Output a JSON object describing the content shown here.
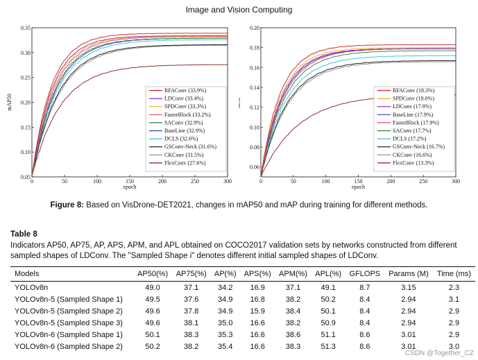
{
  "header": {
    "journal": "Image and Vision Computing"
  },
  "chart_data": [
    {
      "type": "line",
      "id": "left",
      "xlabel": "epoch",
      "ylabel": "mAP50",
      "xlim": [
        0,
        300
      ],
      "ylim": [
        0.05,
        0.35
      ],
      "xticks": [
        0,
        50,
        100,
        150,
        200,
        250,
        300
      ],
      "yticks": [
        0.05,
        0.1,
        0.15,
        0.2,
        0.25,
        0.3,
        0.35
      ],
      "ytick_labels": [
        "0.05",
        "0.10",
        "0.15",
        "0.20",
        "0.25",
        "0.30",
        "0.35"
      ],
      "legend_position": "lower-right",
      "series": [
        {
          "name": "RFAConv (33.9%)",
          "color": "#cc1f1f",
          "final": 0.339
        },
        {
          "name": "LDConv (33.4%)",
          "color": "#8e24aa",
          "final": 0.334
        },
        {
          "name": "SPDConv (33.3%)",
          "color": "#f5a623",
          "final": 0.333
        },
        {
          "name": "FasterBlock (33.2%)",
          "color": "#e6446e",
          "final": 0.332
        },
        {
          "name": "SAConv (32.9%)",
          "color": "#2e7d32",
          "final": 0.329
        },
        {
          "name": "BaseLine (32.9%)",
          "color": "#2f3fb5",
          "final": 0.329
        },
        {
          "name": "DCLS (32.6%)",
          "color": "#33bbee",
          "final": 0.326
        },
        {
          "name": "GSConv-Neck (31.6%)",
          "color": "#111111",
          "final": 0.316
        },
        {
          "name": "CKConv (31.5%)",
          "color": "#888888",
          "final": 0.315
        },
        {
          "name": "FlexConv (27.6%)",
          "color": "#8b1a1a",
          "final": 0.276
        }
      ]
    },
    {
      "type": "line",
      "id": "right",
      "xlabel": "epoch",
      "ylabel": "mAP",
      "xlim": [
        0,
        300
      ],
      "ylim": [
        0.05,
        0.2
      ],
      "xticks": [
        0,
        50,
        100,
        150,
        200,
        250,
        300
      ],
      "yticks": [
        0.06,
        0.08,
        0.1,
        0.12,
        0.14,
        0.16,
        0.18,
        0.2
      ],
      "ytick_labels": [
        "0.06",
        "0.08",
        "0.10",
        "0.12",
        "0.14",
        "0.16",
        "0.18",
        "0.20"
      ],
      "legend_position": "lower-right",
      "series": [
        {
          "name": "RFAConv (18.3%)",
          "color": "#cc1f1f",
          "final": 0.183
        },
        {
          "name": "SPDConv (18.0%)",
          "color": "#f5a623",
          "final": 0.18
        },
        {
          "name": "LDConv (17.9%)",
          "color": "#8e24aa",
          "final": 0.179
        },
        {
          "name": "BaseLine (17.9%)",
          "color": "#2f3fb5",
          "final": 0.179
        },
        {
          "name": "FasterBlock (17.9%)",
          "color": "#e6446e",
          "final": 0.179
        },
        {
          "name": "SAConv (17.7%)",
          "color": "#2e7d32",
          "final": 0.177
        },
        {
          "name": "DCLS (17.2%)",
          "color": "#33bbee",
          "final": 0.172
        },
        {
          "name": "GSConv-Neck (16.7%)",
          "color": "#111111",
          "final": 0.167
        },
        {
          "name": "CKConv (16.6%)",
          "color": "#888888",
          "final": 0.166
        },
        {
          "name": "FlexConv (13.3%)",
          "color": "#8b1a1a",
          "final": 0.133
        }
      ]
    }
  ],
  "figure": {
    "label": "Figure 8:",
    "caption": "Based on VisDrone-DET2021, changes in mAP50 and mAP during training for different methods."
  },
  "table": {
    "label": "Table 8",
    "caption": "Indicators AP50, AP75, AP, APS, APM, and APL obtained on COCO2017 validation sets by networks constructed from different sampled shapes of LDConv. The \"Sampled Shape i\" denotes different initial sampled shapes of LDConv.",
    "headers": {
      "models": "Models",
      "ap50": "AP50(%)",
      "ap75": "AP75(%)",
      "ap": "AP(%)",
      "aps": "APS(%)",
      "apm": "APM(%)",
      "apl": "APL(%)",
      "gflops": "GFLOPS",
      "params": "Params (M)",
      "time": "Time (ms)"
    },
    "rows": [
      {
        "model": "YOLOv8n",
        "ap50": "49.0",
        "ap75": "37.1",
        "ap": "34.2",
        "aps": "16.9",
        "apm": "37.1",
        "apl": "49.1",
        "gflops": "8.7",
        "params": "3.15",
        "time": "2.3"
      },
      {
        "model": "YOLOv8n-5 (Sampled Shape 1)",
        "ap50": "49.5",
        "ap75": "37.6",
        "ap": "34.9",
        "aps": "16.8",
        "apm": "38.2",
        "apl": "50.2",
        "gflops": "8.4",
        "params": "2.94",
        "time": "3.1"
      },
      {
        "model": "YOLOv8n-5 (Sampled Shape 2)",
        "ap50": "49.6",
        "ap75": "37.8",
        "ap": "34.9",
        "aps": "15.9",
        "apm": "38.4",
        "apl": "50.1",
        "gflops": "8.4",
        "params": "2.94",
        "time": "2.9"
      },
      {
        "model": "YOLOv8n-5 (Sampled Shape 3)",
        "ap50": "49.6",
        "ap75": "38.1",
        "ap": "35.0",
        "aps": "16.6",
        "apm": "38.2",
        "apl": "50.9",
        "gflops": "8.4",
        "params": "2.94",
        "time": "2.9"
      },
      {
        "model": "YOLOv8n-6 (Sampled Shape 1)",
        "ap50": "50.1",
        "ap75": "38.3",
        "ap": "35.3",
        "aps": "16.6",
        "apm": "38.6",
        "apl": "51.1",
        "gflops": "8.6",
        "params": "3.01",
        "time": "2.9"
      },
      {
        "model": "YOLOv8n-6 (Sampled Shape 2)",
        "ap50": "50.2",
        "ap75": "38.2",
        "ap": "35.4",
        "aps": "16.6",
        "apm": "38.3",
        "apl": "51.3",
        "gflops": "8.6",
        "params": "3.01",
        "time": "3.0"
      }
    ]
  },
  "watermark": "CSDN @Together_CZ"
}
